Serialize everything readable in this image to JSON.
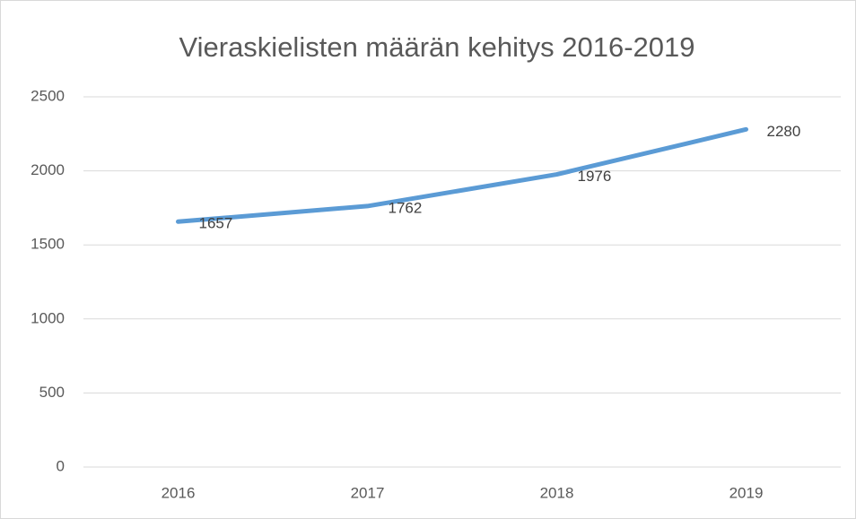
{
  "chart_data": {
    "type": "line",
    "title": "Vieraskielisten määrän kehitys 2016-2019",
    "categories": [
      "2016",
      "2017",
      "2018",
      "2019"
    ],
    "values": [
      1657,
      1762,
      1976,
      2280
    ],
    "color": "#5b9bd5",
    "ylim": [
      0,
      2500
    ],
    "yticks": [
      0,
      500,
      1000,
      1500,
      2000,
      2500
    ],
    "grid": true
  }
}
